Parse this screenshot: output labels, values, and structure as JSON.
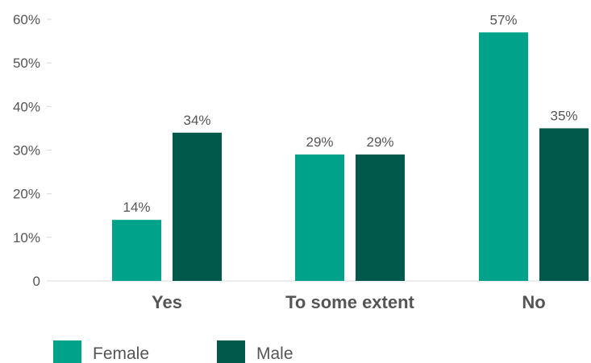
{
  "chart_data": {
    "type": "bar",
    "categories": [
      "Yes",
      "To some extent",
      "No"
    ],
    "series": [
      {
        "name": "Female",
        "values": [
          14,
          29,
          57
        ],
        "color": "#00a389"
      },
      {
        "name": "Male",
        "values": [
          34,
          29,
          35
        ],
        "color": "#00594a"
      }
    ],
    "value_labels": {
      "Female": [
        "14%",
        "29%",
        "57%"
      ],
      "Male": [
        "34%",
        "29%",
        "35%"
      ]
    },
    "y_ticks": [
      "0",
      "10%",
      "20%",
      "30%",
      "40%",
      "50%",
      "60%"
    ],
    "ylim": [
      0,
      60
    ],
    "grid": false,
    "legend_position": "bottom-left"
  }
}
